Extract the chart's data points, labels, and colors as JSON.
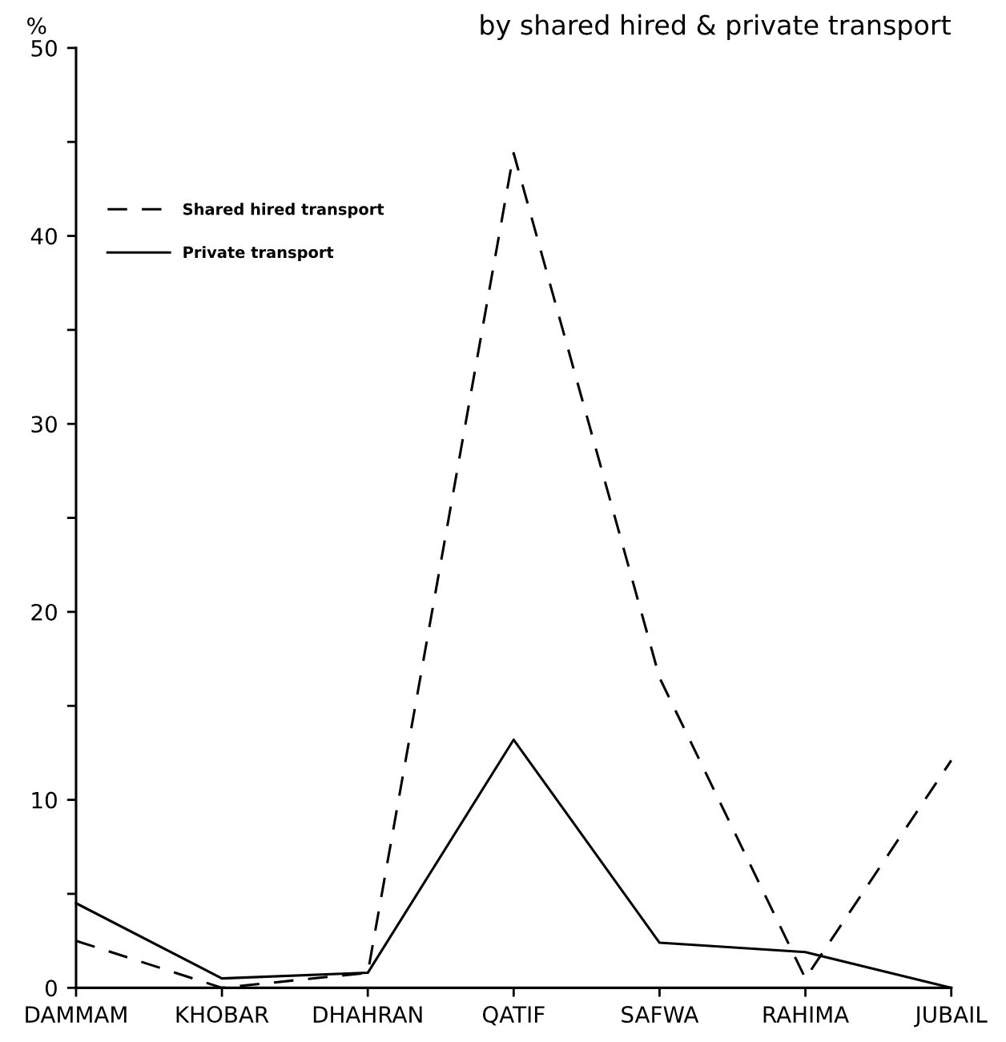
{
  "chart_data": {
    "type": "line",
    "title": "by shared hired & private transport",
    "ylabel": "%",
    "categories": [
      "DAMMAM",
      "KHOBAR",
      "DHAHRAN",
      "QATIF",
      "SAFWA",
      "RAHIMA",
      "JUBAIL"
    ],
    "series": [
      {
        "name": "Shared hired transport",
        "color": "#000000",
        "line_style": "dashed",
        "values": [
          2.5,
          0,
          0.8,
          44.4,
          16.5,
          0.5,
          12.1
        ]
      },
      {
        "name": "Private transport",
        "color": "#000000",
        "line_style": "solid",
        "values": [
          4.5,
          0.5,
          0.8,
          13.2,
          2.4,
          1.9,
          0
        ]
      }
    ],
    "ylim": [
      0,
      50
    ],
    "yticks": [
      0,
      {
        "value": 5,
        "label": null
      },
      10,
      {
        "value": 15,
        "label": null
      },
      20,
      {
        "value": 25,
        "label": null
      },
      30,
      {
        "value": 35,
        "label": null
      },
      40,
      {
        "value": 45,
        "label": null
      },
      50
    ],
    "grid": false,
    "legend": "top left",
    "marker": "none"
  }
}
